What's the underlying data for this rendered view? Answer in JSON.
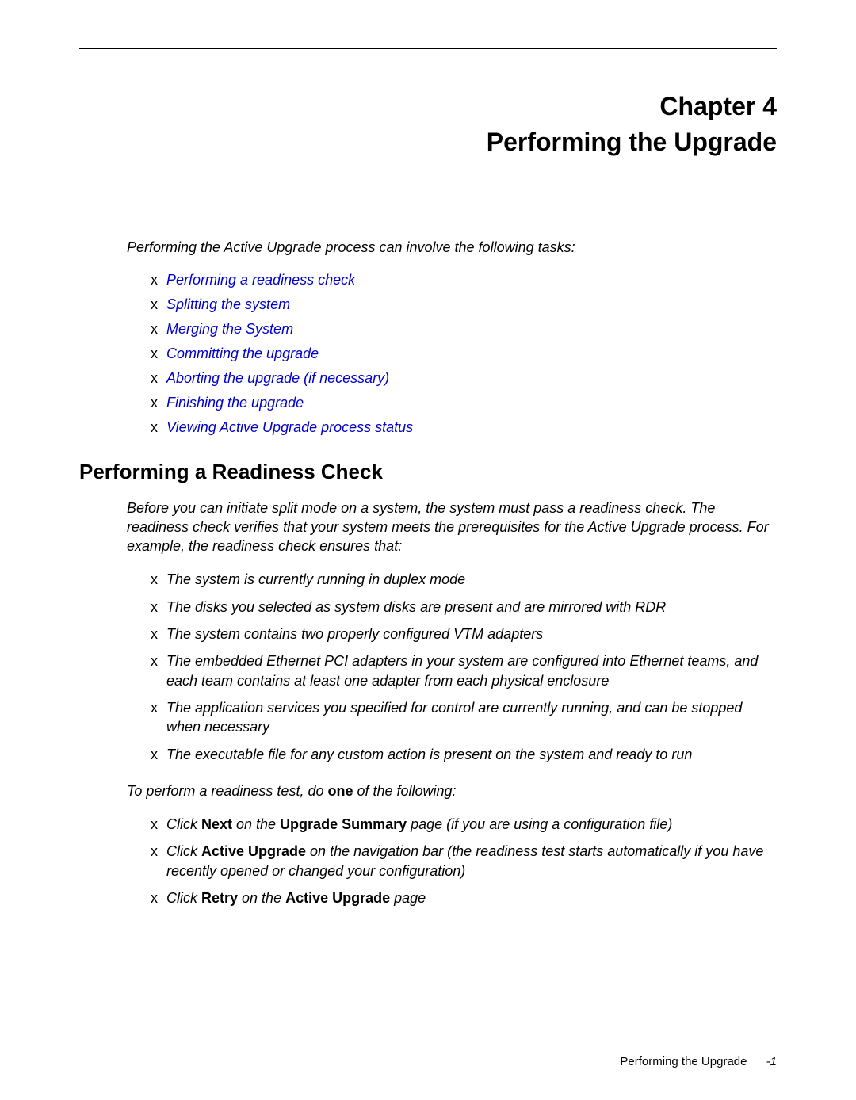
{
  "chapter": {
    "label": "Chapter 4",
    "title": "Performing the Upgrade"
  },
  "intro": "Performing the Active Upgrade process can involve the following tasks:",
  "links": [
    "Performing a readiness check",
    "Splitting the system",
    "Merging the System",
    "Committing the upgrade",
    "Aborting the upgrade (if necessary)",
    "Finishing the upgrade",
    "Viewing Active Upgrade process status"
  ],
  "section": {
    "heading": "Performing a Readiness Check",
    "para1": "Before you can initiate split mode on a system, the system must pass a readiness check. The readiness check verifies that your system meets the prerequisites for the Active Upgrade process. For example, the readiness check ensures that:",
    "checks": [
      "The system is currently running in duplex mode",
      "The disks you selected as system disks are present and are mirrored with RDR",
      "The system contains two properly configured VTM adapters",
      "The embedded Ethernet PCI adapters in your system are configured into Ethernet teams, and each team contains at least one adapter from each physical enclosure",
      "The application services you specified for control are currently running, and can be stopped when necessary",
      "The executable file for any custom action is present on the system and ready to run"
    ],
    "para2_pre": "To perform a readiness test, do ",
    "para2_bold": "one",
    "para2_post": " of the following:",
    "actions": {
      "a1_pre": "Click ",
      "a1_b1": "Next",
      "a1_mid": " on the ",
      "a1_b2": "Upgrade Summary",
      "a1_post": " page (if you are using a configuration file)",
      "a2_pre": "Click ",
      "a2_b1": "Active Upgrade",
      "a2_post": " on the navigation bar (the readiness test starts automatically if you have recently opened or changed your configuration)",
      "a3_pre": "Click ",
      "a3_b1": "Retry",
      "a3_mid": " on the ",
      "a3_b2": "Active Upgrade",
      "a3_post": " page"
    }
  },
  "footer": {
    "title": "Performing the Upgrade",
    "page": "-1"
  },
  "bullet_char": "x"
}
